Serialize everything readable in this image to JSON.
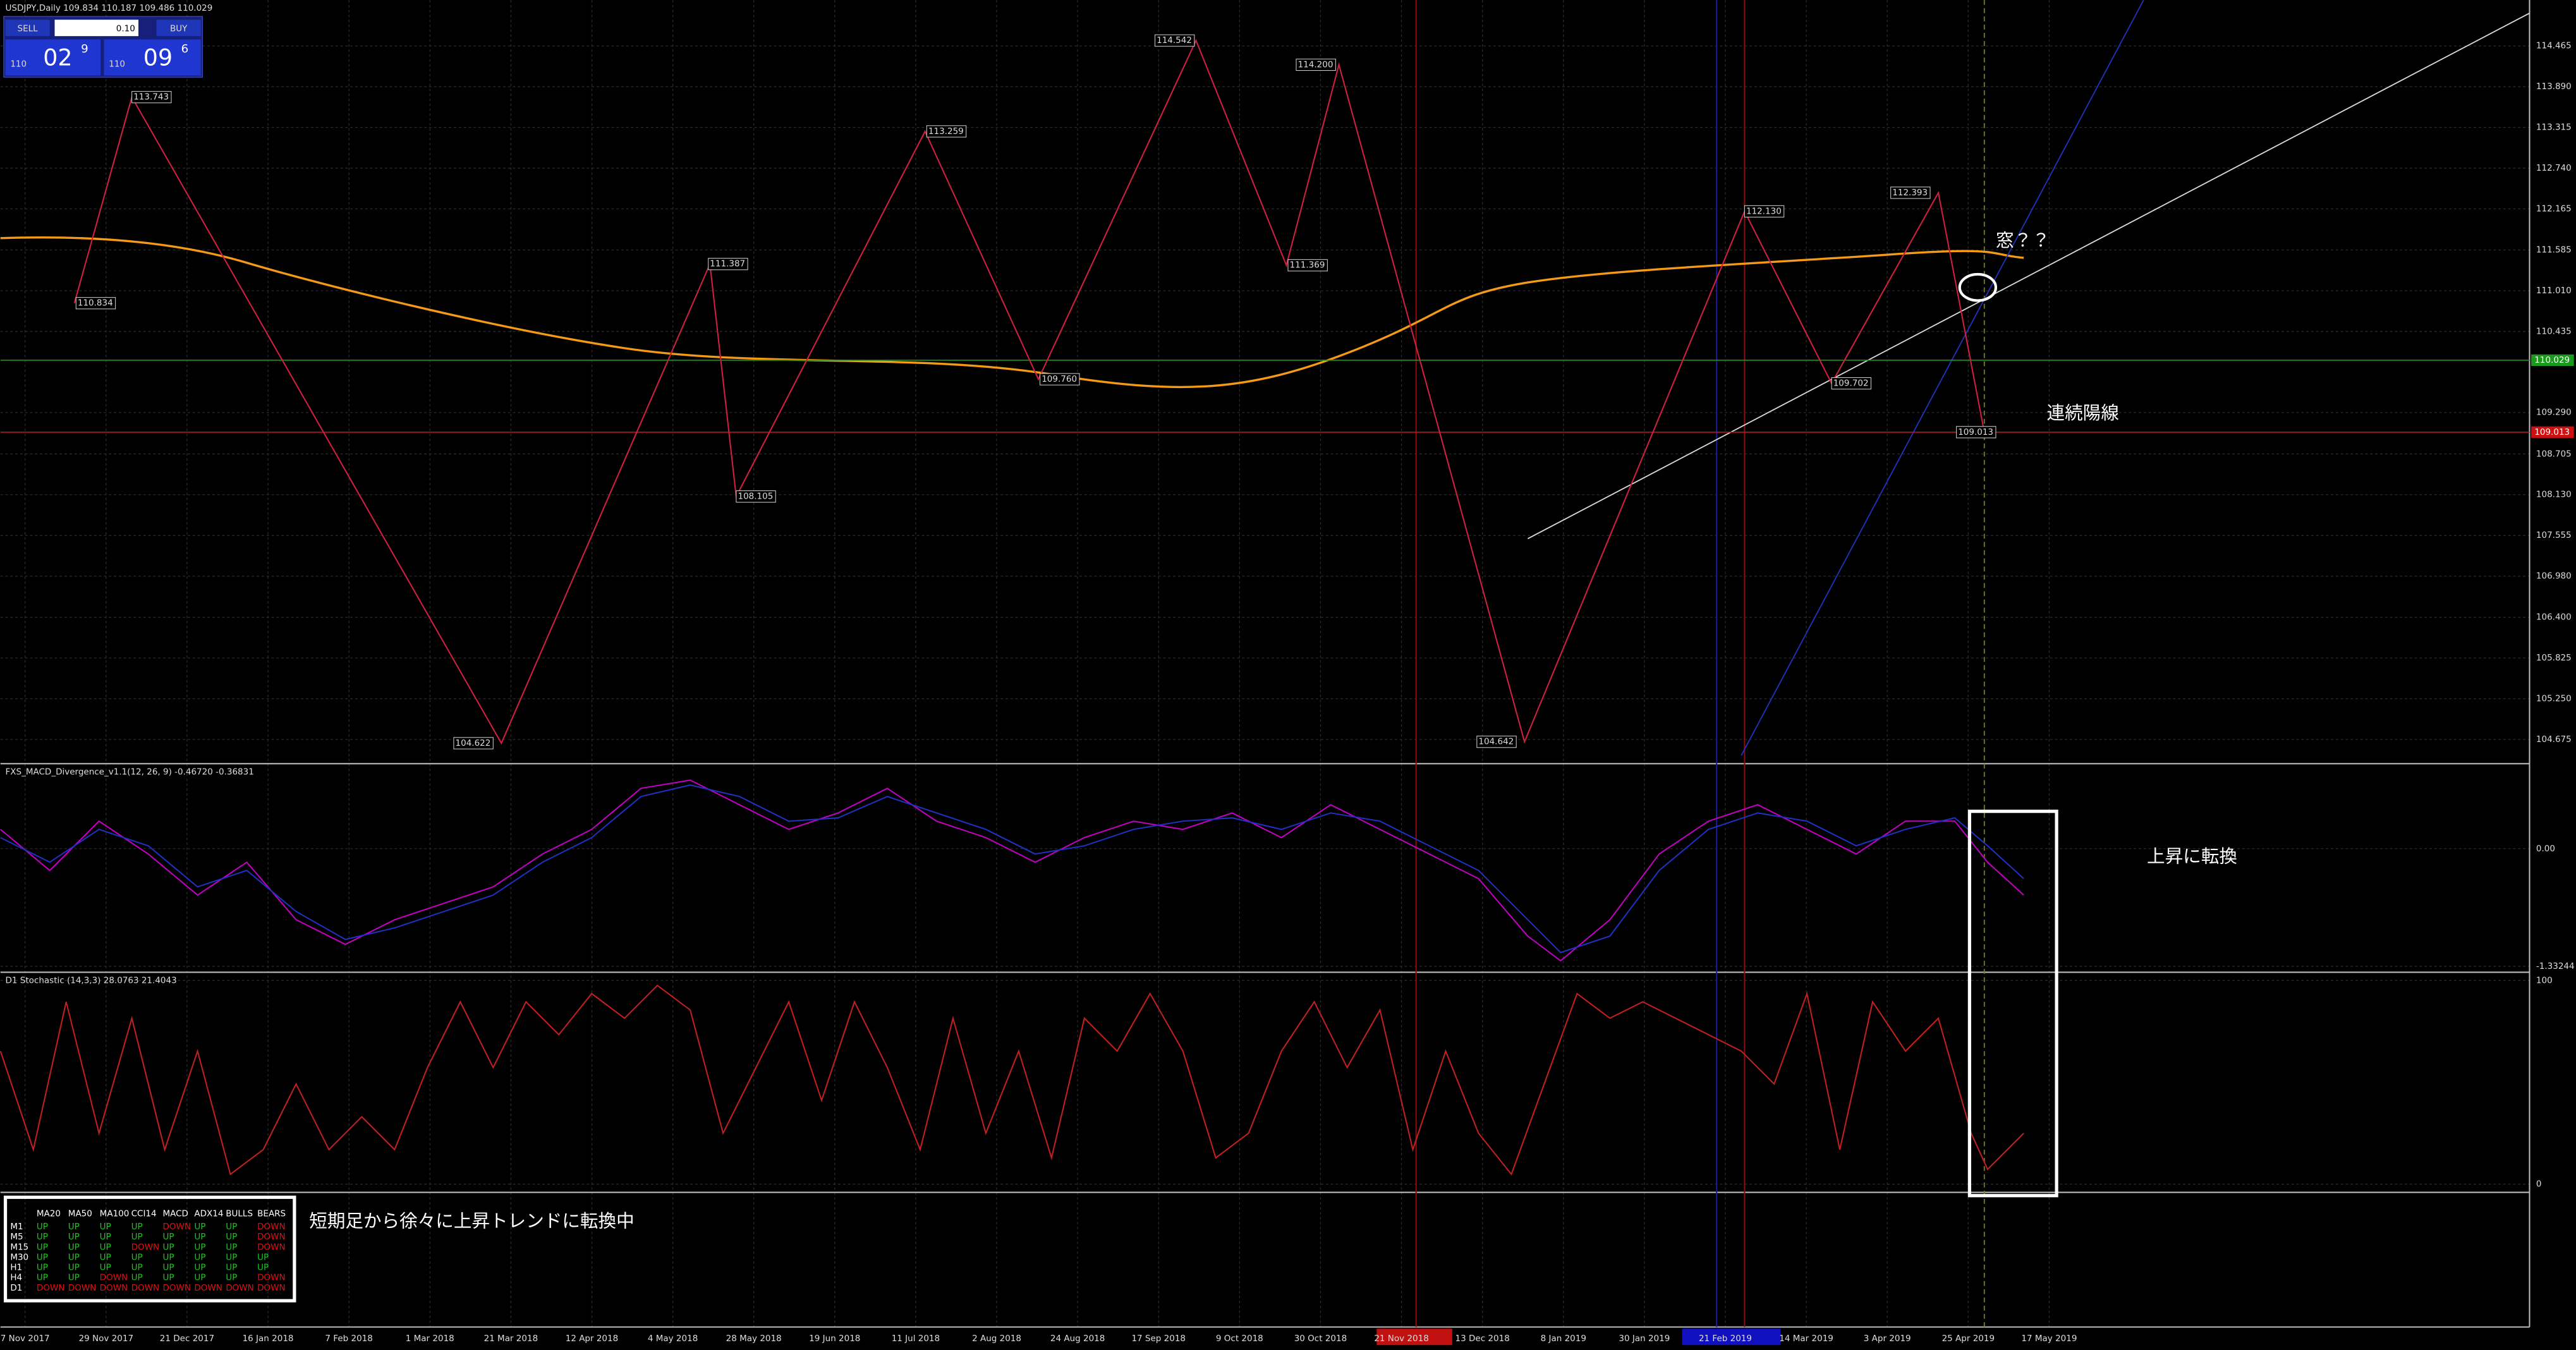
{
  "header": {
    "title": "USDJPY,Daily  109.834 110.187 109.486 110.029"
  },
  "trade_panel": {
    "sell": "SELL",
    "lots": "0.10",
    "buy": "BUY",
    "bid": {
      "big": "110",
      "main": "02",
      "small": "9"
    },
    "ask": {
      "big": "110",
      "main": "09",
      "small": "6"
    }
  },
  "price_chart": {
    "ylim": [
      104.333,
      115.114
    ],
    "yticks": [
      114.465,
      {
        "value": 113.89,
        "label": "113.890"
      },
      113.315,
      {
        "value": 112.74,
        "label": "112.740"
      },
      112.165,
      111.585,
      {
        "value": 111.01,
        "label": "111.010"
      },
      110.435,
      {
        "value": 109.29,
        "label": "109.290"
      },
      108.705,
      {
        "value": 108.13,
        "label": "108.130"
      },
      107.555,
      {
        "value": 106.98,
        "label": "106.980"
      },
      {
        "value": 106.4,
        "label": "106.400"
      },
      105.825,
      {
        "value": 105.25,
        "label": "105.250"
      },
      104.675
    ],
    "pivots": [
      110.834,
      113.743,
      104.622,
      111.387,
      108.105,
      113.259,
      {
        "value": 109.76,
        "label": "109.760"
      },
      114.542,
      111.369,
      {
        "value": 114.2,
        "label": "114.200"
      },
      104.642,
      {
        "value": 112.13,
        "label": "112.130"
      },
      109.702,
      112.393,
      109.013
    ],
    "price_tags": [
      {
        "value": 110.029,
        "color": "#1a9a1a"
      },
      {
        "value": 109.013,
        "color": "#d01010"
      }
    ],
    "annotations": [
      "窓？？",
      "連続陽線"
    ]
  },
  "macd_panel": {
    "title": "FXS_MACD_Divergence_v1.1(12, 26, 9) -0.46720 -0.36831",
    "ylim": [
      -1.4,
      0.944
    ],
    "yticks": [
      {
        "value": 0,
        "label": "0.00"
      },
      -1.33244
    ],
    "annotation": "上昇に転換"
  },
  "stoch_panel": {
    "title": "D1 Stochastic (14,3,3) 28.0763 21.4043",
    "ylim": [
      0,
      100
    ],
    "yticks": [
      0,
      100
    ]
  },
  "table": {
    "headers": [
      "MA20",
      "MA50",
      "MA100",
      "CCI14",
      "MACD",
      "ADX14",
      "BULLS",
      "BEARS"
    ],
    "rows": [
      {
        "tf": "M1",
        "cells": [
          "UP",
          "UP",
          "UP",
          "UP",
          "DOWN",
          "UP",
          "UP",
          "DOWN"
        ]
      },
      {
        "tf": "M5",
        "cells": [
          "UP",
          "UP",
          "UP",
          "UP",
          "UP",
          "UP",
          "UP",
          "DOWN"
        ]
      },
      {
        "tf": "M15",
        "cells": [
          "UP",
          "UP",
          "UP",
          "DOWN",
          "UP",
          "UP",
          "UP",
          "DOWN"
        ]
      },
      {
        "tf": "M30",
        "cells": [
          "UP",
          "UP",
          "UP",
          "UP",
          "UP",
          "UP",
          "UP",
          "UP"
        ]
      },
      {
        "tf": "H1",
        "cells": [
          "UP",
          "UP",
          "UP",
          "UP",
          "UP",
          "UP",
          "UP",
          "UP"
        ]
      },
      {
        "tf": "H4",
        "cells": [
          "UP",
          "UP",
          "DOWN",
          "UP",
          "UP",
          "UP",
          "UP",
          "DOWN"
        ]
      },
      {
        "tf": "D1",
        "cells": [
          "DOWN",
          "DOWN",
          "DOWN",
          "DOWN",
          "DOWN",
          "DOWN",
          "DOWN",
          "DOWN"
        ]
      }
    ],
    "note": "短期足から徐々に上昇トレンドに転換中"
  },
  "dates": [
    "7 Nov 2017",
    "29 Nov 2017",
    "21 Dec 2017",
    "16 Jan 2018",
    "7 Feb 2018",
    "1 Mar 2018",
    "21 Mar 2018",
    "12 Apr 2018",
    "4 May 2018",
    "28 May 2018",
    "19 Jun 2018",
    "11 Jul 2018",
    "2 Aug 2018",
    "24 Aug 2018",
    "17 Sep 2018",
    "9 Oct 2018",
    "30 Oct 2018",
    "21 Nov 2018",
    "13 Dec 2018",
    "8 Jan 2019",
    "30 Jan 2019",
    "21 Feb 2019",
    "14 Mar 2019",
    "3 Apr 2019",
    "25 Apr 2019",
    "17 May 2019"
  ]
}
